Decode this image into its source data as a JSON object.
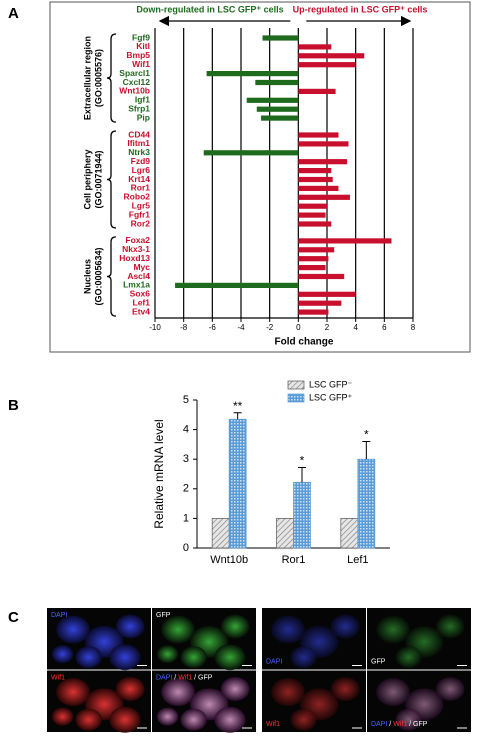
{
  "panel_labels": [
    "A",
    "B",
    "C"
  ],
  "chart_data": [
    {
      "type": "hbar-groups",
      "header_down": "Down-regulated in LSC GFP⁺ cells",
      "header_up": "Up-regulated in LSC GFP⁺ cells",
      "xlabel": "Fold change",
      "xlim": [
        -10,
        8
      ],
      "xticks": [
        -10,
        -8,
        -6,
        -4,
        -2,
        0,
        2,
        4,
        6,
        8
      ],
      "colors": {
        "up": "#c8102e",
        "down": "#1e6b1e"
      },
      "groups": [
        {
          "label": "Extracellular region",
          "go": "(GO:0005576)",
          "categories": [
            "Fgf9",
            "Kitl",
            "Bmp5",
            "Wif1",
            "Sparcl1",
            "Cxcl12",
            "Wnt10b",
            "Igf1",
            "Sfrp1",
            "Pip"
          ],
          "values": [
            -2.5,
            2.3,
            4.6,
            4.0,
            -6.4,
            -3.0,
            2.6,
            -3.6,
            -2.9,
            -2.6
          ]
        },
        {
          "label": "Cell periphery",
          "go": "(GO:0071944)",
          "categories": [
            "CD44",
            "Ifitm1",
            "Ntrk3",
            "Fzd9",
            "Lgr6",
            "Krt14",
            "Ror1",
            "Robo2",
            "Lgr5",
            "Fgfr1",
            "Ror2"
          ],
          "values": [
            2.8,
            3.5,
            -6.6,
            3.4,
            2.3,
            2.4,
            2.8,
            3.6,
            2.0,
            1.9,
            2.3
          ]
        },
        {
          "label": "Nucleus",
          "go": "(GO:0005634)",
          "categories": [
            "Foxa2",
            "Nkx3-1",
            "Hoxd13",
            "Myc",
            "Ascl4",
            "Lmx1a",
            "Sox6",
            "Lef1",
            "Etv4"
          ],
          "values": [
            6.5,
            2.5,
            2.1,
            1.9,
            3.2,
            -8.6,
            4.0,
            3.0,
            2.1
          ]
        }
      ]
    },
    {
      "type": "bar",
      "ylabel": "Relative mRNA level",
      "categories": [
        "Wnt10b",
        "Ror1",
        "Lef1"
      ],
      "ylim": [
        0,
        5
      ],
      "yticks": [
        0,
        1,
        2,
        3,
        4,
        5
      ],
      "series": [
        {
          "name": "LSC GFP⁻",
          "color": "#cccccc",
          "values": [
            1,
            1,
            1
          ]
        },
        {
          "name": "LSC GFP⁺",
          "color": "#5b9bd5",
          "values": [
            4.35,
            2.22,
            3.0
          ],
          "errors": [
            0.22,
            0.5,
            0.6
          ],
          "annotations": [
            "**",
            "*",
            "*"
          ]
        }
      ]
    }
  ],
  "panel_c": {
    "images": [
      {
        "labels": [
          [
            {
              "text": "DAPI",
              "color": "#4466ff"
            }
          ],
          [
            {
              "text": "GFP",
              "color": "#ffffff"
            }
          ],
          [
            {
              "text": "Wif1",
              "color": "#ff3333"
            }
          ],
          [
            {
              "text": "DAPI",
              "color": "#4466ff"
            },
            {
              "text": " / ",
              "color": "#ffffff"
            },
            {
              "text": "Wif1",
              "color": "#ff3333"
            },
            {
              "text": " / ",
              "color": "#ffffff"
            },
            {
              "text": "GFP",
              "color": "#ffffff"
            }
          ]
        ]
      },
      {
        "labels": [
          [
            {
              "text": "DAPI",
              "color": "#4466ff"
            }
          ],
          [
            {
              "text": "GFP",
              "color": "#ffffff"
            }
          ],
          [
            {
              "text": "Wif1",
              "color": "#ff3333"
            }
          ],
          [
            {
              "text": "DAPI",
              "color": "#4466ff"
            },
            {
              "text": " / ",
              "color": "#ffffff"
            },
            {
              "text": "Wif1",
              "color": "#ff3333"
            },
            {
              "text": " / ",
              "color": "#ffffff"
            },
            {
              "text": "GFP",
              "color": "#ffffff"
            }
          ]
        ]
      }
    ]
  }
}
